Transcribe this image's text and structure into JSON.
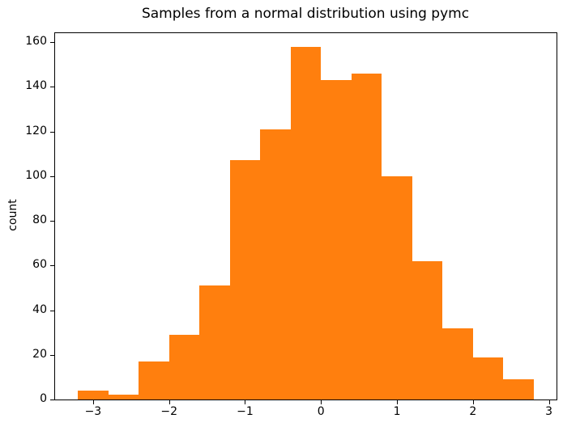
{
  "figure": {
    "title": "Samples from a normal distribution using pymc",
    "ylabel": "count",
    "xlabel": ""
  },
  "colors": {
    "bar": "#ff7f0e",
    "axis": "#000000",
    "text": "#000000",
    "background": "#ffffff"
  },
  "chart_data": {
    "type": "bar",
    "subtype": "histogram",
    "title": "Samples from a normal distribution using pymc",
    "xlabel": "",
    "ylabel": "count",
    "bin_edges": [
      -3.2,
      -2.8,
      -2.4,
      -2.0,
      -1.6,
      -1.2,
      -0.8,
      -0.4,
      0.0,
      0.4,
      0.8,
      1.2,
      1.6,
      2.0,
      2.4,
      2.8
    ],
    "values": [
      4,
      2,
      17,
      29,
      51,
      107,
      121,
      158,
      143,
      146,
      100,
      62,
      32,
      19,
      9
    ],
    "bar_color": "#ff7f0e",
    "xlim": [
      -3.5,
      3.1
    ],
    "ylim": [
      0,
      164
    ],
    "x_ticks": [
      -3,
      -2,
      -1,
      0,
      1,
      2,
      3
    ],
    "x_tick_labels": [
      "−3",
      "−2",
      "−1",
      "0",
      "1",
      "2",
      "3"
    ],
    "y_ticks": [
      0,
      20,
      40,
      60,
      80,
      100,
      120,
      140,
      160
    ],
    "y_tick_labels": [
      "0",
      "20",
      "40",
      "60",
      "80",
      "100",
      "120",
      "140",
      "160"
    ],
    "grid": false,
    "legend": "none"
  }
}
